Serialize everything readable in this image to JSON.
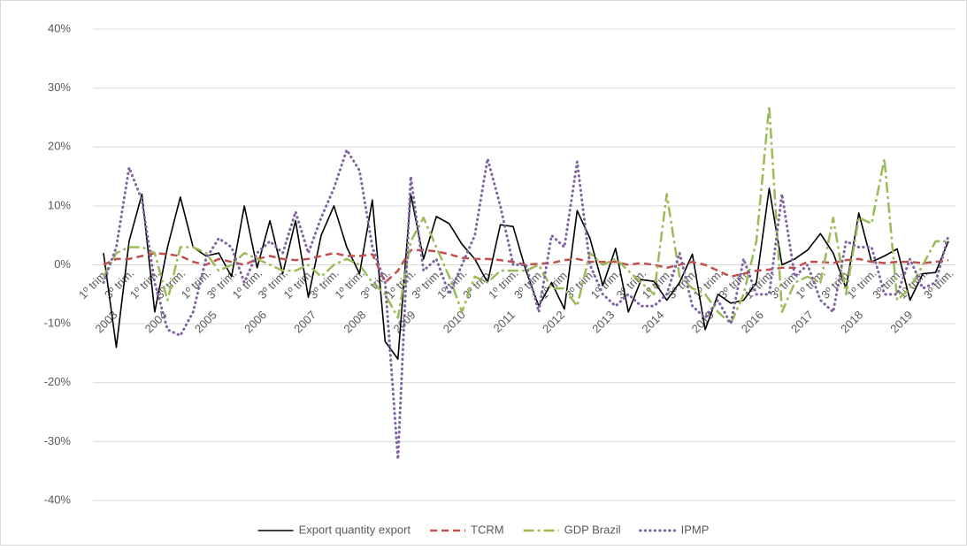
{
  "chart_data": {
    "type": "line",
    "categories": [
      "1º trim.",
      null,
      "3º trim.",
      null,
      "1º trim.",
      null,
      "3º trim.",
      null,
      "1º trim.",
      null,
      "3º trim.",
      null,
      "1º trim.",
      null,
      "3º trim.",
      null,
      "1º trim.",
      null,
      "3º trim.",
      null,
      "1º trim.",
      null,
      "3º trim.",
      null,
      "1º trim.",
      null,
      "3º trim.",
      null,
      "1º trim.",
      null,
      "3º trim.",
      null,
      "1º trim.",
      null,
      "3º trim.",
      null,
      "1º trim.",
      null,
      "3º trim.",
      null,
      "1º trim.",
      null,
      "3º trim.",
      null,
      "1º trim.",
      null,
      "3º trim.",
      null,
      "1º trim.",
      null,
      "3º trim.",
      null,
      "1º trim.",
      null,
      "3º trim.",
      null,
      "1º trim.",
      null,
      "3º trim.",
      null,
      "1º trim.",
      null,
      "3º trim.",
      null,
      "1º trim.",
      null,
      "3º trim."
    ],
    "years": [
      "2003",
      "2004",
      "2005",
      "2006",
      "2007",
      "2008",
      "2009",
      "2010",
      "2011",
      "2012",
      "2013",
      "2014",
      "2015",
      "2016",
      "2017",
      "2018",
      "2019"
    ],
    "series": [
      {
        "name": "Export quantity export",
        "color": "#000000",
        "style": "solid",
        "values": [
          2,
          -14,
          4,
          12,
          -8,
          3,
          11.5,
          3,
          1.5,
          2,
          -2,
          10,
          -0.5,
          7.5,
          -1.5,
          7.5,
          -5.5,
          5,
          10,
          3,
          -1.5,
          11,
          -13,
          -16,
          12,
          1,
          8.2,
          7,
          3.5,
          1,
          -3,
          6.8,
          6.5,
          -1,
          -7,
          -3,
          -7.5,
          9.2,
          4.5,
          -3.5,
          2.8,
          -8,
          -2.5,
          -2.8,
          -6,
          -3,
          1.8,
          -11,
          -5,
          -6.5,
          -6,
          -3,
          13,
          0,
          1,
          2.5,
          5.3,
          2,
          -4,
          8.8,
          0.5,
          1.5,
          2.7,
          -6,
          -1.5,
          -1.3,
          4
        ]
      },
      {
        "name": "TCRM",
        "color": "#c0504d",
        "style": "dashed",
        "values": [
          0,
          1,
          1,
          1.5,
          2,
          1.8,
          1.5,
          0.5,
          0,
          1,
          0.5,
          0,
          1,
          1.5,
          1,
          0.8,
          1,
          1.5,
          2,
          1.5,
          1.5,
          1.8,
          -3,
          -1,
          2.5,
          2.5,
          2.3,
          1.8,
          1.2,
          1,
          1,
          0.8,
          0.5,
          0,
          0.2,
          0.3,
          0.8,
          1,
          0.5,
          0.5,
          0.5,
          0,
          0.3,
          0,
          -0.5,
          0,
          0.5,
          0,
          -1,
          -2,
          -1.5,
          -1,
          -0.8,
          -0.5,
          -0.5,
          0.5,
          0.5,
          0.3,
          0.8,
          1,
          0.5,
          0.3,
          0.5,
          0.5,
          0.3,
          0.5,
          0.8
        ]
      },
      {
        "name": "GDP Brazil",
        "color": "#9bbb59",
        "style": "dashdot",
        "values": [
          -2,
          2,
          3,
          3,
          2,
          -6,
          3,
          3,
          2,
          -1,
          0,
          2,
          1,
          0,
          -1,
          -1,
          0,
          -2,
          0,
          1,
          0,
          -3,
          -5,
          -9,
          4,
          8,
          3,
          -2,
          -8,
          -2,
          -3,
          -1,
          -1,
          -1,
          0,
          -4,
          -4,
          -7,
          2,
          0,
          1,
          -1,
          -3,
          -5,
          12,
          -2,
          -4,
          -5,
          -8,
          -10,
          -5,
          4,
          27,
          -8,
          -3,
          -2,
          -3,
          8,
          -5,
          8,
          7,
          18,
          -6,
          -4,
          0,
          4,
          4
        ]
      },
      {
        "name": "IPMP",
        "color": "#8064a2",
        "style": "dotted",
        "values": [
          -3,
          3,
          16.5,
          11,
          -3,
          -11,
          -12,
          -8,
          1,
          4.5,
          3,
          -3,
          2,
          4,
          2,
          9,
          2,
          8,
          13,
          19.5,
          16,
          3,
          -3,
          -33,
          15,
          -1,
          1,
          -5,
          0,
          5,
          18,
          10,
          0,
          0,
          -8,
          5,
          3,
          17.5,
          0,
          -5,
          -7,
          -5,
          -7,
          -7,
          -5,
          2,
          -7,
          -9,
          -6,
          -10,
          1,
          -5,
          -5,
          12,
          -2,
          0,
          -6,
          -8,
          4,
          3,
          3,
          -5,
          -5,
          1,
          -4,
          -3,
          5
        ]
      }
    ],
    "ylim": [
      -40,
      40
    ],
    "yticks": [
      {
        "value": -40,
        "label": "-40%"
      },
      {
        "value": -30,
        "label": "-30%"
      },
      {
        "value": -20,
        "label": "-20%"
      },
      {
        "value": -10,
        "label": "-10%"
      },
      {
        "value": 0,
        "label": "0%"
      },
      {
        "value": 10,
        "label": "10%"
      },
      {
        "value": 20,
        "label": "20%"
      },
      {
        "value": 30,
        "label": "30%"
      },
      {
        "value": 40,
        "label": "40%"
      }
    ],
    "grid": true,
    "legend": "bottom"
  }
}
